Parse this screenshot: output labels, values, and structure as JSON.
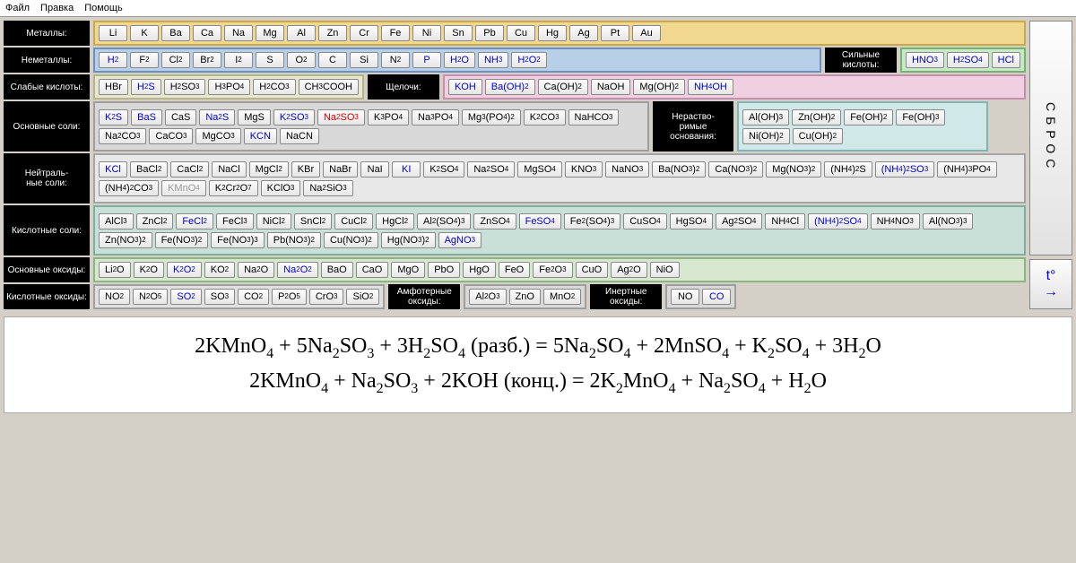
{
  "menu": {
    "file": "Файл",
    "edit": "Правка",
    "help": "Помощь"
  },
  "colors": {
    "metals": {
      "bg": "#f0d890",
      "border": "#c9a94a"
    },
    "nonmetals": {
      "bg": "#b8cfe8",
      "border": "#6a8fc2"
    },
    "strong_acids": {
      "bg": "#c8e8c8",
      "border": "#6eb56e"
    },
    "weak_acids": {
      "bg": "#e8e8d0",
      "border": "#b5b58a"
    },
    "bases": {
      "bg": "#f0d0e0",
      "border": "#c98db0"
    },
    "basic_salts": {
      "bg": "#d8d8d8",
      "border": "#9e9e9e"
    },
    "insol_bases": {
      "bg": "#d0e8e8",
      "border": "#7fb5b5"
    },
    "neutral_salts": {
      "bg": "#e8e8e8",
      "border": "#a5a5a5"
    },
    "acid_salts": {
      "bg": "#c8e0d8",
      "border": "#7fb09e"
    },
    "basic_oxides": {
      "bg": "#d8e8d0",
      "border": "#8ab57f"
    },
    "acid_oxides": {
      "bg": "#e0e0e0",
      "border": "#a0a0a0"
    },
    "amph_oxides": {
      "bg": "#d8d8d8",
      "border": "#9e9e9e"
    },
    "inert_oxides": {
      "bg": "#d8d8d8",
      "border": "#9e9e9e"
    }
  },
  "labels": {
    "metals": "Металлы:",
    "nonmetals": "Неметаллы:",
    "strong_acids": "Сильные кислоты:",
    "weak_acids": "Слабые кислоты:",
    "bases": "Щелочи:",
    "basic_salts": "Основные соли:",
    "insol_bases": "Нераство-римые основания:",
    "neutral_salts": "Нейтраль-ные соли:",
    "acid_salts": "Кислотные соли:",
    "basic_oxides": "Основные оксиды:",
    "acid_oxides": "Кислотные оксиды:",
    "amph_oxides": "Амфотерные оксиды:",
    "inert_oxides": "Инертные оксиды:"
  },
  "metals": [
    "Li",
    "K",
    "Ba",
    "Ca",
    "Na",
    "Mg",
    "Al",
    "Zn",
    "Cr",
    "Fe",
    "Ni",
    "Sn",
    "Pb",
    "Cu",
    "Hg",
    "Ag",
    "Pt",
    "Au"
  ],
  "nonmetals": [
    {
      "t": "H_2",
      "c": "blue"
    },
    {
      "t": "F_2"
    },
    {
      "t": "Cl_2"
    },
    {
      "t": "Br_2"
    },
    {
      "t": "I_2"
    },
    {
      "t": "S"
    },
    {
      "t": "O_2"
    },
    {
      "t": "C"
    },
    {
      "t": "Si"
    },
    {
      "t": "N_2"
    },
    {
      "t": "P",
      "c": "blue"
    },
    {
      "t": "H_2O",
      "c": "blue"
    },
    {
      "t": "NH_3",
      "c": "blue"
    },
    {
      "t": "H_2O_2",
      "c": "blue"
    }
  ],
  "strong_acids": [
    {
      "t": "HNO_3",
      "c": "blue"
    },
    {
      "t": "H_2SO_4",
      "c": "blue"
    },
    {
      "t": "HCl",
      "c": "blue"
    }
  ],
  "weak_acids": [
    {
      "t": "HBr"
    },
    {
      "t": "H_2S",
      "c": "blue"
    },
    {
      "t": "H_2SO_3"
    },
    {
      "t": "H_3PO_4"
    },
    {
      "t": "H_2CO_3"
    },
    {
      "t": "CH_3COOH"
    }
  ],
  "bases": [
    {
      "t": "KOH",
      "c": "blue"
    },
    {
      "t": "Ba(OH)_2",
      "c": "blue"
    },
    {
      "t": "Ca(OH)_2"
    },
    {
      "t": "NaOH"
    },
    {
      "t": "Mg(OH)_2"
    },
    {
      "t": "NH_4OH",
      "c": "blue"
    }
  ],
  "basic_salts": [
    {
      "t": "K_2S",
      "c": "blue"
    },
    {
      "t": "BaS",
      "c": "blue"
    },
    {
      "t": "CaS"
    },
    {
      "t": "Na_2S",
      "c": "blue"
    },
    {
      "t": "MgS"
    },
    {
      "t": "K_2SO_3",
      "c": "blue"
    },
    {
      "t": "Na_2SO_3",
      "c": "red"
    },
    {
      "t": "K_3PO_4"
    },
    {
      "t": "Na_3PO_4"
    },
    {
      "t": "Mg_3(PO_4)_2"
    },
    {
      "t": "K_2CO_3"
    },
    {
      "t": "NaHCO_3"
    },
    {
      "t": "Na_2CO_3"
    },
    {
      "t": "CaCO_3"
    },
    {
      "t": "MgCO_3"
    },
    {
      "t": "KCN",
      "c": "blue"
    },
    {
      "t": "NaCN"
    }
  ],
  "insol_bases": [
    {
      "t": "Al(OH)_3"
    },
    {
      "t": "Zn(OH)_2"
    },
    {
      "t": "Fe(OH)_2"
    },
    {
      "t": "Fe(OH)_3"
    },
    {
      "t": "Ni(OH)_2"
    },
    {
      "t": "Cu(OH)_2"
    }
  ],
  "neutral_salts": [
    {
      "t": "KCl",
      "c": "blue"
    },
    {
      "t": "BaCl_2"
    },
    {
      "t": "CaCl_2"
    },
    {
      "t": "NaCl"
    },
    {
      "t": "MgCl_2"
    },
    {
      "t": "KBr"
    },
    {
      "t": "NaBr"
    },
    {
      "t": "NaI"
    },
    {
      "t": "KI",
      "c": "blue"
    },
    {
      "t": "K_2SO_4"
    },
    {
      "t": "Na_2SO_4"
    },
    {
      "t": "MgSO_4"
    },
    {
      "t": "KNO_3"
    },
    {
      "t": "NaNO_3"
    },
    {
      "t": "Ba(NO_3)_2"
    },
    {
      "t": "Ca(NO_3)_2"
    },
    {
      "t": "Mg(NO_3)_2"
    },
    {
      "t": "(NH_4)_2S"
    },
    {
      "t": "(NH_4)_2SO_3",
      "c": "blue"
    },
    {
      "t": "(NH_4)_3PO_4"
    },
    {
      "t": "(NH_4)_2CO_3"
    },
    {
      "t": "KMnO_4",
      "c": "gray"
    },
    {
      "t": "K_2Cr_2O_7"
    },
    {
      "t": "KClO_3"
    },
    {
      "t": "Na_2SiO_3"
    }
  ],
  "acid_salts": [
    {
      "t": "AlCl_3"
    },
    {
      "t": "ZnCl_2"
    },
    {
      "t": "FeCl_2",
      "c": "blue"
    },
    {
      "t": "FeCl_3"
    },
    {
      "t": "NiCl_2"
    },
    {
      "t": "SnCl_2"
    },
    {
      "t": "CuCl_2"
    },
    {
      "t": "HgCl_2"
    },
    {
      "t": "Al_2(SO_4)_3"
    },
    {
      "t": "ZnSO_4"
    },
    {
      "t": "FeSO_4",
      "c": "blue"
    },
    {
      "t": "Fe_2(SO_4)_3"
    },
    {
      "t": "CuSO_4"
    },
    {
      "t": "HgSO_4"
    },
    {
      "t": "Ag_2SO_4"
    },
    {
      "t": "NH_4Cl"
    },
    {
      "t": "(NH_4)_2SO_4",
      "c": "blue"
    },
    {
      "t": "NH_4NO_3"
    },
    {
      "t": "Al(NO_3)_3"
    },
    {
      "t": "Zn(NO_3)_2"
    },
    {
      "t": "Fe(NO_3)_2"
    },
    {
      "t": "Fe(NO_3)_3"
    },
    {
      "t": "Pb(NO_3)_2"
    },
    {
      "t": "Cu(NO_3)_2"
    },
    {
      "t": "Hg(NO_3)_2"
    },
    {
      "t": "AgNO_3",
      "c": "blue"
    }
  ],
  "basic_oxides": [
    {
      "t": "Li_2O"
    },
    {
      "t": "K_2O"
    },
    {
      "t": "K_2O_2",
      "c": "blue"
    },
    {
      "t": "KO_2"
    },
    {
      "t": "Na_2O"
    },
    {
      "t": "Na_2O_2",
      "c": "blue"
    },
    {
      "t": "BaO"
    },
    {
      "t": "CaO"
    },
    {
      "t": "MgO"
    },
    {
      "t": "PbO"
    },
    {
      "t": "HgO"
    },
    {
      "t": "FeO"
    },
    {
      "t": "Fe_2O_3"
    },
    {
      "t": "CuO"
    },
    {
      "t": "Ag_2O"
    },
    {
      "t": "NiO"
    }
  ],
  "acid_oxides": [
    {
      "t": "NO_2"
    },
    {
      "t": "N_2O_5"
    },
    {
      "t": "SO_2",
      "c": "blue"
    },
    {
      "t": "SO_3"
    },
    {
      "t": "CO_2"
    },
    {
      "t": "P_2O_5"
    },
    {
      "t": "CrO_3"
    },
    {
      "t": "SiO_2"
    }
  ],
  "amph_oxides": [
    {
      "t": "Al_2O_3"
    },
    {
      "t": "ZnO"
    },
    {
      "t": "MnO_2"
    }
  ],
  "inert_oxides": [
    {
      "t": "NO"
    },
    {
      "t": "CO",
      "c": "blue"
    }
  ],
  "side": {
    "reset": "СБРОС",
    "temp": "t°",
    "arrow": "→"
  },
  "equations": [
    "2KMnO_4 + 5Na_2SO_3 + 3H_2SO_4 (разб.) = 5Na_2SO_4 + 2MnSO_4 + K_2SO_4 + 3H_2O",
    "2KMnO_4 + Na_2SO_3 + 2KOH (конц.) = 2K_2MnO_4 + Na_2SO_4 + H_2O"
  ]
}
